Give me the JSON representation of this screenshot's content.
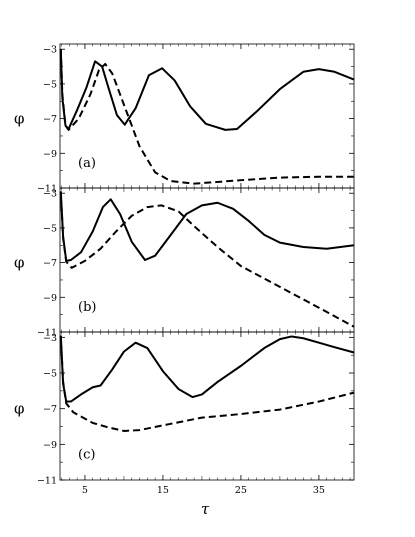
{
  "chart_data": [
    {
      "type": "line",
      "panel_label": "(a)",
      "ylabel": "φ",
      "xlim": [
        1.8,
        39.5
      ],
      "ylim": [
        -11,
        -2.7
      ],
      "yticks": [
        -3,
        -5,
        -7,
        -9,
        -11
      ],
      "xticks": [
        5,
        15,
        25,
        35
      ],
      "series": [
        {
          "style": "solid",
          "points": [
            [
              1.9,
              -3
            ],
            [
              2.1,
              -5.8
            ],
            [
              2.5,
              -7.4
            ],
            [
              2.9,
              -7.6
            ],
            [
              4,
              -6.5
            ],
            [
              5.2,
              -5.2
            ],
            [
              6.3,
              -3.7
            ],
            [
              7.2,
              -4.0
            ],
            [
              8,
              -5.2
            ],
            [
              9.1,
              -6.8
            ],
            [
              10.1,
              -7.35
            ],
            [
              11.5,
              -6.4
            ],
            [
              13.2,
              -4.5
            ],
            [
              14.9,
              -4.1
            ],
            [
              16.5,
              -4.8
            ],
            [
              18.5,
              -6.3
            ],
            [
              20.5,
              -7.3
            ],
            [
              23,
              -7.65
            ],
            [
              24.5,
              -7.6
            ],
            [
              27,
              -6.6
            ],
            [
              30,
              -5.3
            ],
            [
              33,
              -4.3
            ],
            [
              35,
              -4.15
            ],
            [
              37,
              -4.3
            ],
            [
              39.5,
              -4.75
            ]
          ]
        },
        {
          "style": "dashed",
          "points": [
            [
              1.9,
              -3
            ],
            [
              2.1,
              -5.6
            ],
            [
              2.5,
              -7.4
            ],
            [
              2.9,
              -7.65
            ],
            [
              4.2,
              -7.0
            ],
            [
              5.7,
              -5.6
            ],
            [
              6.8,
              -4.2
            ],
            [
              7.6,
              -3.85
            ],
            [
              8.5,
              -4.4
            ],
            [
              10,
              -6.2
            ],
            [
              12,
              -8.6
            ],
            [
              14,
              -10.1
            ],
            [
              16,
              -10.6
            ],
            [
              19,
              -10.75
            ],
            [
              25,
              -10.55
            ],
            [
              30,
              -10.4
            ],
            [
              35,
              -10.35
            ],
            [
              39.5,
              -10.35
            ]
          ]
        }
      ]
    },
    {
      "type": "line",
      "panel_label": "(b)",
      "ylabel": "φ",
      "xlim": [
        1.8,
        39.5
      ],
      "ylim": [
        -11,
        -2.7
      ],
      "yticks": [
        -3,
        -5,
        -7,
        -9,
        -11
      ],
      "xticks": [
        5,
        15,
        25,
        35
      ],
      "series": [
        {
          "style": "solid",
          "points": [
            [
              1.9,
              -2.9
            ],
            [
              2.2,
              -5.5
            ],
            [
              2.6,
              -6.9
            ],
            [
              3.2,
              -6.85
            ],
            [
              4.5,
              -6.4
            ],
            [
              6,
              -5.2
            ],
            [
              7.3,
              -3.8
            ],
            [
              8.3,
              -3.35
            ],
            [
              9.5,
              -4.2
            ],
            [
              11,
              -5.8
            ],
            [
              12.7,
              -6.85
            ],
            [
              14,
              -6.6
            ],
            [
              16,
              -5.4
            ],
            [
              18,
              -4.2
            ],
            [
              20,
              -3.7
            ],
            [
              22,
              -3.55
            ],
            [
              24,
              -3.9
            ],
            [
              26,
              -4.6
            ],
            [
              28,
              -5.4
            ],
            [
              30,
              -5.85
            ],
            [
              33,
              -6.1
            ],
            [
              36,
              -6.2
            ],
            [
              39.5,
              -6.0
            ]
          ]
        },
        {
          "style": "dashed",
          "points": [
            [
              1.9,
              -2.9
            ],
            [
              2.2,
              -5.6
            ],
            [
              2.6,
              -6.95
            ],
            [
              3.3,
              -7.3
            ],
            [
              5,
              -6.9
            ],
            [
              7,
              -6.2
            ],
            [
              9,
              -5.2
            ],
            [
              11,
              -4.3
            ],
            [
              13,
              -3.8
            ],
            [
              14.8,
              -3.7
            ],
            [
              17,
              -4.05
            ],
            [
              19,
              -4.9
            ],
            [
              22,
              -6.1
            ],
            [
              25,
              -7.2
            ],
            [
              30,
              -8.4
            ],
            [
              35,
              -9.6
            ],
            [
              39.5,
              -10.7
            ]
          ]
        }
      ]
    },
    {
      "type": "line",
      "panel_label": "(c)",
      "ylabel": "φ",
      "xlabel": "τ",
      "xlim": [
        1.8,
        39.5
      ],
      "ylim": [
        -11,
        -2.7
      ],
      "yticks": [
        -3,
        -5,
        -7,
        -9,
        -11
      ],
      "xticks": [
        5,
        15,
        25,
        35
      ],
      "series": [
        {
          "style": "solid",
          "points": [
            [
              1.9,
              -2.9
            ],
            [
              2.2,
              -5.6
            ],
            [
              2.6,
              -6.6
            ],
            [
              3.2,
              -6.6
            ],
            [
              4.5,
              -6.2
            ],
            [
              6,
              -5.8
            ],
            [
              7,
              -5.7
            ],
            [
              8.5,
              -4.8
            ],
            [
              10,
              -3.8
            ],
            [
              11.5,
              -3.3
            ],
            [
              13,
              -3.6
            ],
            [
              15,
              -4.9
            ],
            [
              17,
              -5.9
            ],
            [
              18.8,
              -6.35
            ],
            [
              20,
              -6.2
            ],
            [
              22,
              -5.5
            ],
            [
              25,
              -4.6
            ],
            [
              28,
              -3.6
            ],
            [
              30,
              -3.1
            ],
            [
              31.5,
              -2.95
            ],
            [
              33,
              -3.05
            ],
            [
              35,
              -3.3
            ],
            [
              37,
              -3.55
            ],
            [
              39.5,
              -3.85
            ]
          ]
        },
        {
          "style": "dashed",
          "points": [
            [
              1.9,
              -2.9
            ],
            [
              2.2,
              -5.5
            ],
            [
              2.6,
              -6.7
            ],
            [
              3.5,
              -7.2
            ],
            [
              6,
              -7.8
            ],
            [
              8,
              -8.05
            ],
            [
              10,
              -8.25
            ],
            [
              12,
              -8.2
            ],
            [
              16,
              -7.85
            ],
            [
              20,
              -7.5
            ],
            [
              25,
              -7.3
            ],
            [
              30,
              -7.05
            ],
            [
              35,
              -6.6
            ],
            [
              39.5,
              -6.1
            ]
          ]
        }
      ]
    }
  ]
}
